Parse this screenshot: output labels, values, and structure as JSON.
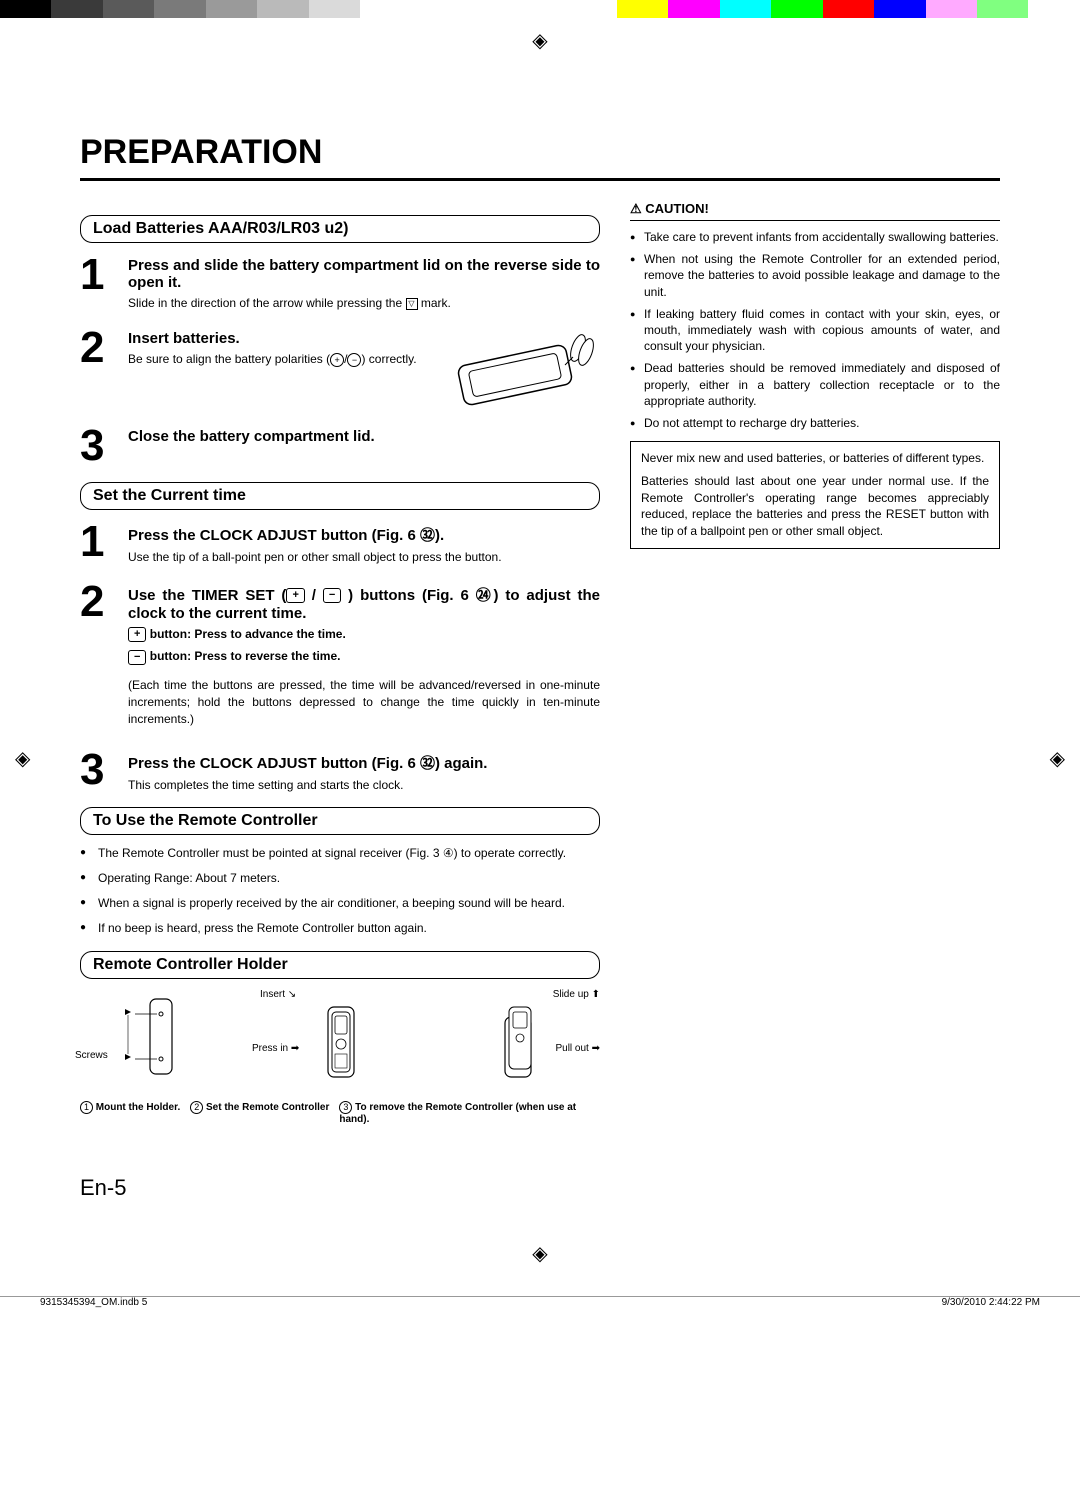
{
  "colorbar": [
    "#000000",
    "#3a3a3a",
    "#5a5a5a",
    "#7a7a7a",
    "#9a9a9a",
    "#bababa",
    "#dadada",
    "#ffffff",
    "#ffffff",
    "#ffffff",
    "#ffffff",
    "#ffffff",
    "#ffff00",
    "#ff00ff",
    "#00ffff",
    "#00ff00",
    "#ff0000",
    "#0000ff",
    "#ffaaff",
    "#80ff80",
    "#ffffff"
  ],
  "page_title": "PREPARATION",
  "sections": {
    "load_batt": "Load Batteries AAA/R03/LR03  u2)",
    "set_time": "Set the Current time",
    "use_remote": "To Use the Remote Controller",
    "holder": "Remote Controller Holder"
  },
  "steps_a": {
    "s1_title": "Press and slide the battery compartment lid on the reverse side to open it.",
    "s1_note": "Slide in the direction of the arrow while pressing the",
    "s1_note_end": "mark.",
    "s2_title": "Insert batteries.",
    "s2_note": "Be sure to align the battery polarities (",
    "s2_note_end": ") correctly.",
    "s3_title": "Close the battery compartment lid."
  },
  "steps_b": {
    "s1_title": "Press the CLOCK ADJUST button (Fig. 6 ㉜).",
    "s1_note": "Use the tip of a ball-point pen or other small object to press the button.",
    "s2_title_a": "Use the TIMER SET (",
    "s2_title_b": " / ",
    "s2_title_c": " ) buttons (Fig. 6 ㉔) to adjust the clock to the current time.",
    "s2_plus": " button: Press to advance the time.",
    "s2_minus": " button: Press to reverse the time.",
    "s2_note": "(Each time the buttons are pressed, the time will be advanced/reversed in one-minute increments; hold the buttons depressed to change the time quickly in ten-minute increments.)",
    "s3_title": "Press the CLOCK ADJUST button (Fig. 6 ㉜) again.",
    "s3_note": "This completes the time setting and starts the clock."
  },
  "use_remote_list": [
    "The Remote Controller must be pointed at signal receiver (Fig. 3 ④) to operate correctly.",
    "Operating Range: About 7 meters.",
    "When a signal is properly received by the air conditioner, a beeping sound will be heard.",
    "If no beep is heard, press the Remote Controller button again."
  ],
  "holder_labels": {
    "screws": "Screws",
    "insert": "Insert",
    "press_in": "Press in",
    "slide_up": "Slide up",
    "pull_out": "Pull out",
    "c1": "Mount the Holder.",
    "c2": "Set the Remote Controller",
    "c3": "To remove the Remote Controller (when use at hand)."
  },
  "caution_title": "⚠ CAUTION!",
  "caution_list": [
    "Take care to prevent infants from accidentally swallowing batteries.",
    "When not using the Remote Controller for an extended period, remove the batteries to avoid possible leakage and damage to the unit.",
    "If leaking battery fluid comes in contact with your skin, eyes, or mouth, immediately wash with copious amounts of water, and consult your physician.",
    "Dead batteries should be removed immediately and disposed of properly, either in a battery collection receptacle or to the appropriate authority.",
    "Do not attempt to recharge dry batteries."
  ],
  "caution_box_a": "Never mix new and used batteries, or batteries of different types.",
  "caution_box_b": "Batteries should last about one year under normal use. If the Remote Controller's operating range becomes appreciably reduced, replace the batteries and press the RESET button with the tip of a ballpoint pen or other small object.",
  "page_num": "En-5",
  "footer": {
    "left": "9315345394_OM.indb   5",
    "right": "9/30/2010   2:44:22 PM"
  }
}
